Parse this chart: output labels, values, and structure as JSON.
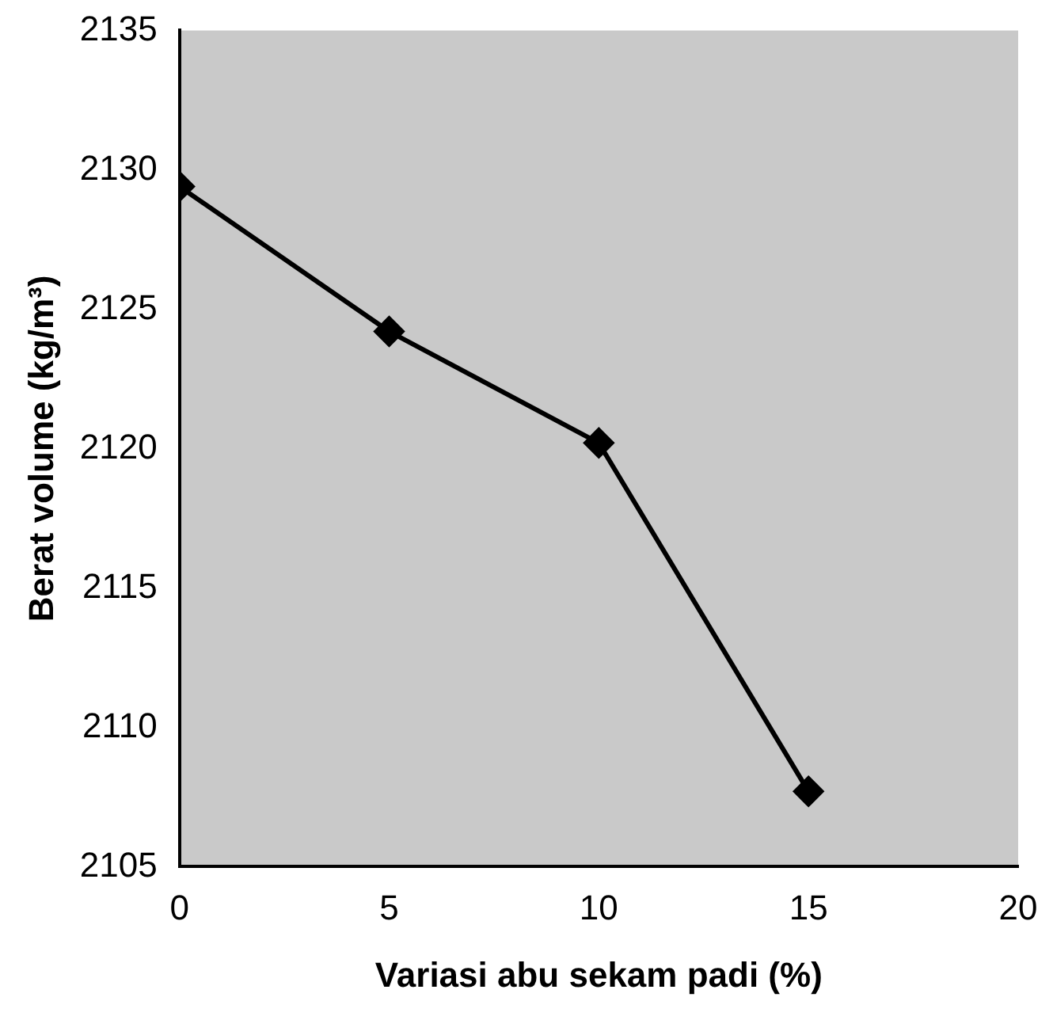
{
  "chart_data": {
    "type": "line",
    "xlabel": "Variasi abu sekam padi (%)",
    "ylabel": "Berat volume (kg/m³)",
    "x": [
      0,
      5,
      10,
      15
    ],
    "series": [
      {
        "color": "#000000",
        "values": [
          2129.4,
          2124.2,
          2120.2,
          2107.7
        ]
      }
    ],
    "xlim": [
      0,
      20
    ],
    "xticks": [
      0,
      5,
      10,
      15,
      20
    ],
    "ylim": [
      2105,
      2135
    ],
    "yticks": [
      2105,
      2110,
      2115,
      2120,
      2125,
      2130,
      2135
    ],
    "grid": false,
    "legend": false,
    "marker": "diamond",
    "line_style": "solid"
  }
}
